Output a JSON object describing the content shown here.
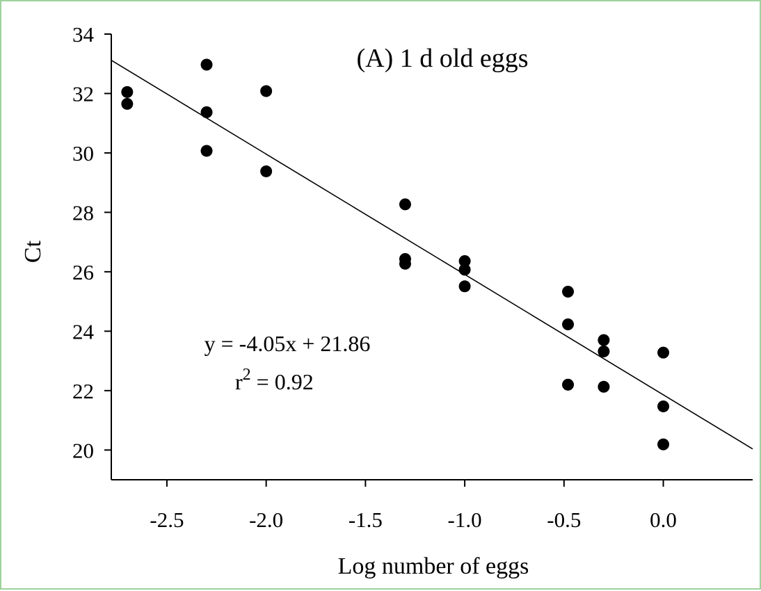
{
  "chart_data": {
    "type": "scatter",
    "title": "(A) 1 d old eggs",
    "xlabel": "Log number of eggs",
    "ylabel": "Ct",
    "xlim": [
      -2.78,
      0.45
    ],
    "ylim": [
      19,
      34
    ],
    "x_ticks": [
      -2.5,
      -2.0,
      -1.5,
      -1.0,
      -0.5,
      0.0
    ],
    "x_tick_labels": [
      "-2.5",
      "-2.0",
      "-1.5",
      "-1.0",
      "-0.5",
      "0.0"
    ],
    "y_ticks": [
      20,
      22,
      24,
      26,
      28,
      30,
      32,
      34
    ],
    "y_tick_labels": [
      "20",
      "22",
      "24",
      "26",
      "28",
      "30",
      "32",
      "34"
    ],
    "grid": false,
    "marker_color": "#000000",
    "points": [
      {
        "x": -2.7,
        "y": 32.05
      },
      {
        "x": -2.7,
        "y": 31.65
      },
      {
        "x": -2.3,
        "y": 32.97
      },
      {
        "x": -2.3,
        "y": 31.37
      },
      {
        "x": -2.3,
        "y": 30.07
      },
      {
        "x": -2.0,
        "y": 32.08
      },
      {
        "x": -2.0,
        "y": 29.38
      },
      {
        "x": -1.3,
        "y": 28.27
      },
      {
        "x": -1.3,
        "y": 26.43
      },
      {
        "x": -1.3,
        "y": 26.27
      },
      {
        "x": -1.0,
        "y": 26.36
      },
      {
        "x": -1.0,
        "y": 26.07
      },
      {
        "x": -1.0,
        "y": 25.51
      },
      {
        "x": -0.48,
        "y": 25.33
      },
      {
        "x": -0.48,
        "y": 24.23
      },
      {
        "x": -0.48,
        "y": 22.2
      },
      {
        "x": -0.3,
        "y": 23.7
      },
      {
        "x": -0.3,
        "y": 23.32
      },
      {
        "x": -0.3,
        "y": 22.13
      },
      {
        "x": 0.0,
        "y": 23.28
      },
      {
        "x": 0.0,
        "y": 21.47
      },
      {
        "x": 0.0,
        "y": 20.19
      }
    ],
    "regression": {
      "slope": -4.05,
      "intercept": 21.86,
      "x_range": [
        -2.78,
        0.45
      ]
    },
    "annotations": {
      "equation": "y = -4.05x + 21.86",
      "r2_base": "r",
      "r2_exp": "2",
      "r2_value": " = 0.92"
    }
  }
}
